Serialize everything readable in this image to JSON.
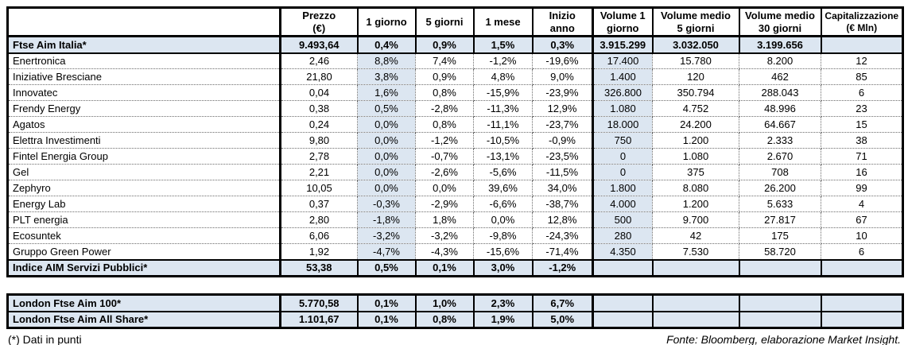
{
  "main_table": {
    "headers": [
      "",
      "Prezzo\n(€)",
      "1 giorno",
      "5 giorni",
      "1 mese",
      "Inizio anno",
      "Volume 1\ngiorno",
      "Volume medio\n5 giorni",
      "Volume medio\n30 giorni",
      "Capitalizzazione\n(€ Mln)"
    ],
    "summary_top": {
      "name": "Ftse Aim Italia*",
      "values": [
        "9.493,64",
        "0,4%",
        "0,9%",
        "1,5%",
        "0,3%",
        "3.915.299",
        "3.032.050",
        "3.199.656",
        ""
      ]
    },
    "rows": [
      {
        "name": "Enertronica",
        "values": [
          "2,46",
          "8,8%",
          "7,4%",
          "-1,2%",
          "-19,6%",
          "17.400",
          "15.780",
          "8.200",
          "12"
        ]
      },
      {
        "name": "Iniziative Bresciane",
        "values": [
          "21,80",
          "3,8%",
          "0,9%",
          "4,8%",
          "9,0%",
          "1.400",
          "120",
          "462",
          "85"
        ]
      },
      {
        "name": "Innovatec",
        "values": [
          "0,04",
          "1,6%",
          "0,8%",
          "-15,9%",
          "-23,9%",
          "326.800",
          "350.794",
          "288.043",
          "6"
        ]
      },
      {
        "name": "Frendy Energy",
        "values": [
          "0,38",
          "0,5%",
          "-2,8%",
          "-11,3%",
          "12,9%",
          "1.080",
          "4.752",
          "48.996",
          "23"
        ]
      },
      {
        "name": "Agatos",
        "values": [
          "0,24",
          "0,0%",
          "0,8%",
          "-11,1%",
          "-23,7%",
          "18.000",
          "24.200",
          "64.667",
          "15"
        ]
      },
      {
        "name": "Elettra Investimenti",
        "values": [
          "9,80",
          "0,0%",
          "-1,2%",
          "-10,5%",
          "-0,9%",
          "750",
          "1.200",
          "2.333",
          "38"
        ]
      },
      {
        "name": "Fintel Energia Group",
        "values": [
          "2,78",
          "0,0%",
          "-0,7%",
          "-13,1%",
          "-23,5%",
          "0",
          "1.080",
          "2.670",
          "71"
        ]
      },
      {
        "name": "Gel",
        "values": [
          "2,21",
          "0,0%",
          "-2,6%",
          "-5,6%",
          "-11,5%",
          "0",
          "375",
          "708",
          "16"
        ]
      },
      {
        "name": "Zephyro",
        "values": [
          "10,05",
          "0,0%",
          "0,0%",
          "39,6%",
          "34,0%",
          "1.800",
          "8.080",
          "26.200",
          "99"
        ]
      },
      {
        "name": "Energy Lab",
        "values": [
          "0,37",
          "-0,3%",
          "-2,9%",
          "-6,6%",
          "-38,7%",
          "4.000",
          "1.200",
          "5.633",
          "4"
        ]
      },
      {
        "name": "PLT energia",
        "values": [
          "2,80",
          "-1,8%",
          "1,8%",
          "0,0%",
          "12,8%",
          "500",
          "9.700",
          "27.817",
          "67"
        ]
      },
      {
        "name": "Ecosuntek",
        "values": [
          "6,06",
          "-3,2%",
          "-3,2%",
          "-9,8%",
          "-24,3%",
          "280",
          "42",
          "175",
          "10"
        ]
      },
      {
        "name": "Gruppo Green Power",
        "values": [
          "1,92",
          "-4,7%",
          "-4,3%",
          "-15,6%",
          "-71,4%",
          "4.350",
          "7.530",
          "58.720",
          "6"
        ]
      }
    ],
    "summary_bottom": {
      "name": "Indice AIM Servizi Pubblici*",
      "values": [
        "53,38",
        "0,5%",
        "0,1%",
        "3,0%",
        "-1,2%",
        "",
        "",
        "",
        ""
      ]
    }
  },
  "london_table": {
    "rows": [
      {
        "name": "London Ftse Aim 100*",
        "values": [
          "5.770,58",
          "0,1%",
          "1,0%",
          "2,3%",
          "6,7%",
          "",
          "",
          "",
          ""
        ]
      },
      {
        "name": "London Ftse Aim All Share*",
        "values": [
          "1.101,67",
          "0,1%",
          "0,8%",
          "1,9%",
          "5,0%",
          "",
          "",
          "",
          ""
        ]
      }
    ]
  },
  "footnotes": {
    "left": "(*) Dati in punti",
    "right": "Fonte: Bloomberg, elaborazione Market Insight."
  },
  "colors": {
    "highlight_fill": "#dce6f1",
    "border": "#000000",
    "background": "#ffffff"
  }
}
